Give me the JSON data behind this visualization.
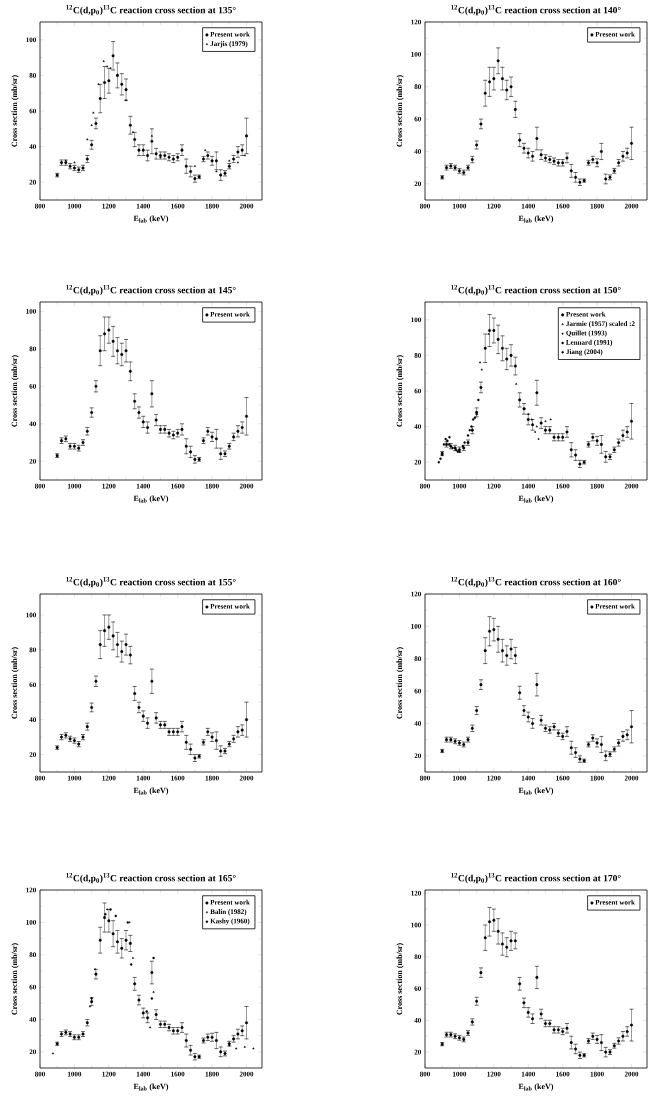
{
  "chart_data": [
    {
      "type": "scatter",
      "title": "$^{12}$C(d,p$_{0}$)$^{13}$C reaction cross section at 135°",
      "xlabel": "E$_{lab}$ (keV)",
      "ylabel": "Cross section (mb/sr)",
      "xlim": [
        800,
        2090
      ],
      "ylim": [
        10,
        110
      ],
      "xticks": [
        800,
        1000,
        1200,
        1400,
        1600,
        1800,
        2000
      ],
      "yticks": [
        20,
        40,
        60,
        80,
        100
      ],
      "legend": "top right",
      "x": [
        900,
        925,
        950,
        975,
        1000,
        1025,
        1050,
        1075,
        1100,
        1125,
        1150,
        1175,
        1200,
        1225,
        1250,
        1275,
        1300,
        1325,
        1350,
        1375,
        1400,
        1425,
        1450,
        1475,
        1500,
        1525,
        1550,
        1575,
        1600,
        1625,
        1650,
        1675,
        1700,
        1725,
        1750,
        1775,
        1800,
        1825,
        1850,
        1875,
        1900,
        1925,
        1950,
        1975,
        2000
      ],
      "series": [
        {
          "name": "Present work",
          "color": "#000000",
          "marker": "circle",
          "values": [
            24,
            31,
            31,
            29,
            28,
            27,
            28,
            33,
            41,
            53,
            67,
            76,
            77,
            91,
            80,
            75,
            72,
            52,
            44,
            38,
            38,
            35,
            43,
            36,
            35,
            35,
            34,
            33,
            34,
            38,
            29,
            26,
            22,
            23,
            33,
            35,
            32,
            32,
            24,
            25,
            29,
            33,
            37,
            38,
            46
          ],
          "errors": [
            1,
            1.5,
            1.5,
            1.5,
            1.5,
            1.5,
            1.5,
            2,
            2.5,
            3,
            8,
            9,
            7,
            8,
            7,
            6,
            6,
            5,
            4,
            3,
            3,
            3,
            7,
            3,
            2,
            2,
            2,
            2,
            2,
            3,
            4,
            3,
            2,
            1,
            1.5,
            2,
            2.5,
            5,
            3,
            1.5,
            1.5,
            2,
            3,
            3,
            10
          ]
        },
        {
          "name": "Jarjis (1979)",
          "color": "#000000",
          "marker": "triangle",
          "x": [
            950,
            1000,
            1075,
            1100,
            1110,
            1140,
            1170,
            1190,
            1210,
            1300,
            1340,
            1450,
            1500,
            1700,
            1760,
            1825,
            1900,
            1950,
            1990
          ],
          "values": [
            32,
            31,
            44,
            52,
            59,
            75,
            88,
            85,
            84,
            66,
            48,
            46,
            34,
            29,
            38,
            26,
            32,
            31,
            35
          ]
        }
      ]
    },
    {
      "type": "scatter",
      "title": "$^{12}$C(d,p$_{0}$)$^{13}$C reaction cross section at 140°",
      "xlabel": "E$_{lab}$ (keV)",
      "ylabel": "Cross section (mb/sr)",
      "xlim": [
        800,
        2090
      ],
      "ylim": [
        10,
        120
      ],
      "xticks": [
        800,
        1000,
        1200,
        1400,
        1600,
        1800,
        2000
      ],
      "yticks": [
        20,
        40,
        60,
        80,
        100,
        120
      ],
      "legend": "top right",
      "x": [
        900,
        925,
        950,
        975,
        1000,
        1025,
        1050,
        1075,
        1100,
        1125,
        1150,
        1175,
        1200,
        1225,
        1250,
        1275,
        1300,
        1325,
        1350,
        1375,
        1400,
        1425,
        1450,
        1475,
        1500,
        1525,
        1550,
        1575,
        1600,
        1625,
        1650,
        1675,
        1700,
        1725,
        1750,
        1775,
        1800,
        1825,
        1850,
        1875,
        1900,
        1925,
        1950,
        1975,
        2000
      ],
      "series": [
        {
          "name": "Present work",
          "color": "#000000",
          "marker": "circle",
          "values": [
            24,
            30,
            31,
            30,
            28,
            27,
            30,
            35,
            44,
            57,
            76,
            83,
            85,
            96,
            85,
            78,
            80,
            66,
            47,
            42,
            39,
            37,
            48,
            38,
            36,
            35,
            34,
            33,
            33,
            36,
            28,
            24,
            21,
            22,
            33,
            35,
            33,
            40,
            23,
            24,
            28,
            33,
            37,
            39,
            45
          ],
          "errors": [
            1,
            1.5,
            1.5,
            1.5,
            1.5,
            1.5,
            1.5,
            2,
            2.5,
            3,
            8,
            9,
            7,
            8,
            7,
            6,
            6,
            5,
            4,
            3,
            3,
            3,
            7,
            3,
            2,
            2,
            2,
            2,
            2,
            3,
            4,
            3,
            2,
            1,
            1.5,
            2,
            2.5,
            5,
            3,
            1.5,
            1.5,
            2,
            3,
            3,
            10
          ]
        }
      ]
    },
    {
      "type": "scatter",
      "title": "$^{12}$C(d,p$_{0}$)$^{13}$C reaction cross section at 145°",
      "xlabel": "E$_{lab}$ (keV)",
      "ylabel": "Cross section (mb/sr)",
      "xlim": [
        800,
        2090
      ],
      "ylim": [
        10,
        105
      ],
      "xticks": [
        800,
        1000,
        1200,
        1400,
        1600,
        1800,
        2000
      ],
      "yticks": [
        20,
        40,
        60,
        80,
        100
      ],
      "legend": "top right",
      "x": [
        900,
        925,
        950,
        975,
        1000,
        1025,
        1050,
        1075,
        1100,
        1125,
        1150,
        1175,
        1200,
        1225,
        1250,
        1275,
        1300,
        1325,
        1350,
        1375,
        1400,
        1425,
        1450,
        1475,
        1500,
        1525,
        1550,
        1575,
        1600,
        1625,
        1650,
        1675,
        1700,
        1725,
        1750,
        1775,
        1800,
        1825,
        1850,
        1875,
        1900,
        1925,
        1950,
        1975,
        2000
      ],
      "series": [
        {
          "name": "Present work",
          "color": "#000000",
          "marker": "circle",
          "values": [
            23,
            31,
            32,
            28,
            28,
            27,
            30,
            36,
            46,
            60,
            79,
            88,
            90,
            84,
            79,
            77,
            79,
            68,
            52,
            46,
            41,
            38,
            56,
            42,
            37,
            37,
            35,
            34,
            35,
            37,
            28,
            25,
            21,
            21,
            31,
            36,
            33,
            32,
            24,
            24,
            28,
            33,
            36,
            38,
            44
          ],
          "errors": [
            1,
            1.5,
            1.5,
            1.5,
            1.5,
            1.5,
            1.5,
            2,
            2.5,
            3,
            8,
            9,
            7,
            8,
            7,
            6,
            6,
            5,
            4,
            3,
            3,
            3,
            7,
            3,
            2,
            2,
            2,
            2,
            2,
            3,
            4,
            3,
            2,
            1,
            1.5,
            2,
            2.5,
            5,
            3,
            1.5,
            1.5,
            2,
            3,
            3,
            10
          ]
        }
      ]
    },
    {
      "type": "scatter",
      "title": "$^{12}$C(d,p$_{0}$)$^{13}$C reaction cross section at 150°",
      "xlabel": "E$_{lab}$ (keV)",
      "ylabel": "Cross section (mb/sr)",
      "xlim": [
        800,
        2090
      ],
      "ylim": [
        10,
        110
      ],
      "xticks": [
        800,
        1000,
        1200,
        1400,
        1600,
        1800,
        2000
      ],
      "yticks": [
        20,
        40,
        60,
        80,
        100
      ],
      "legend": "top right",
      "x": [
        900,
        925,
        950,
        975,
        1000,
        1025,
        1050,
        1075,
        1100,
        1125,
        1150,
        1175,
        1200,
        1225,
        1250,
        1275,
        1300,
        1325,
        1350,
        1375,
        1400,
        1425,
        1450,
        1475,
        1500,
        1525,
        1550,
        1575,
        1600,
        1625,
        1650,
        1675,
        1700,
        1725,
        1750,
        1775,
        1800,
        1825,
        1850,
        1875,
        1900,
        1925,
        1950,
        1975,
        2000
      ],
      "series": [
        {
          "name": "Present work",
          "color": "#000000",
          "marker": "circle",
          "values": [
            25,
            30,
            29,
            28,
            27,
            28,
            31,
            38,
            48,
            62,
            84,
            94,
            94,
            89,
            84,
            78,
            80,
            74,
            55,
            50,
            44,
            41,
            59,
            42,
            38,
            38,
            34,
            34,
            34,
            37,
            27,
            24,
            19,
            20,
            30,
            34,
            32,
            30,
            23,
            23,
            27,
            31,
            35,
            37,
            43
          ],
          "errors": [
            1,
            1.5,
            1.5,
            1.5,
            1.5,
            1.5,
            1.5,
            2,
            2.5,
            3,
            8,
            9,
            7,
            8,
            7,
            6,
            6,
            5,
            4,
            3,
            3,
            3,
            7,
            3,
            2,
            2,
            2,
            2,
            2,
            3,
            4,
            3,
            2,
            1,
            1.5,
            2,
            2.5,
            5,
            3,
            1.5,
            1.5,
            2,
            3,
            3,
            10
          ]
        },
        {
          "name": "Jarmie (1957) scaled :2",
          "color": "#000000",
          "marker": "triangle",
          "x": [
            1120,
            1130,
            1170,
            1330,
            1450,
            1500,
            1530
          ],
          "values": [
            76,
            72,
            92,
            64,
            40,
            43,
            44
          ]
        },
        {
          "name": "Quillet (1993)",
          "color": "#000000",
          "marker": "diamond",
          "x": [
            1380,
            1400,
            1420,
            1440,
            1460
          ],
          "values": [
            50,
            47,
            44,
            37,
            33
          ]
        },
        {
          "name": "Lennard (1991)",
          "color": "#000000",
          "marker": "circle",
          "x": [
            880,
            900,
            920,
            940,
            960,
            990,
            1020,
            1050,
            1070,
            1090,
            1110
          ],
          "values": [
            20,
            24,
            33,
            30,
            28,
            26,
            29,
            35,
            40,
            45,
            55
          ]
        },
        {
          "name": "Jiang (2004)",
          "color": "#000000",
          "marker": "circle",
          "x": [
            890,
            910,
            930,
            942,
            980,
            1000,
            1030,
            1060,
            1080,
            1100
          ],
          "values": [
            22,
            30,
            32,
            34,
            27,
            26,
            31,
            38,
            44,
            47
          ]
        }
      ]
    },
    {
      "type": "scatter",
      "title": "$^{12}$C(d,p$_{0}$)$^{13}$C reaction cross section at 155°",
      "xlabel": "E$_{lab}$ (keV)",
      "ylabel": "Cross section (mb/sr)",
      "xlim": [
        800,
        2090
      ],
      "ylim": [
        10,
        112
      ],
      "xticks": [
        800,
        1000,
        1200,
        1400,
        1600,
        1800,
        2000
      ],
      "yticks": [
        20,
        40,
        60,
        80,
        100
      ],
      "legend": "top right",
      "x": [
        900,
        925,
        950,
        975,
        1000,
        1025,
        1050,
        1075,
        1100,
        1125,
        1150,
        1175,
        1200,
        1225,
        1250,
        1275,
        1300,
        1325,
        1350,
        1375,
        1400,
        1425,
        1450,
        1475,
        1500,
        1525,
        1550,
        1575,
        1600,
        1625,
        1650,
        1675,
        1700,
        1725,
        1750,
        1775,
        1800,
        1825,
        1850,
        1875,
        1900,
        1925,
        1950,
        1975,
        2000
      ],
      "series": [
        {
          "name": "Present work",
          "color": "#000000",
          "marker": "circle",
          "values": [
            24,
            30,
            31,
            29,
            28,
            26,
            30,
            36,
            47,
            62,
            83,
            91,
            93,
            88,
            83,
            79,
            83,
            77,
            55,
            47,
            42,
            38,
            62,
            41,
            37,
            37,
            33,
            33,
            33,
            36,
            27,
            23,
            18,
            19,
            27,
            33,
            30,
            28,
            22,
            22,
            26,
            29,
            33,
            34,
            40
          ],
          "errors": [
            1,
            1.5,
            1.5,
            1.5,
            1.5,
            1.5,
            1.5,
            2,
            2.5,
            3,
            8,
            9,
            7,
            8,
            7,
            6,
            6,
            5,
            4,
            3,
            3,
            3,
            7,
            3,
            2,
            2,
            2,
            2,
            2,
            3,
            4,
            3,
            2,
            1,
            1.5,
            2,
            2.5,
            5,
            3,
            1.5,
            1.5,
            2,
            3,
            3,
            10
          ]
        }
      ]
    },
    {
      "type": "scatter",
      "title": "$^{12}$C(d,p$_{0}$)$^{13}$C reaction cross section at 160°",
      "xlabel": "E$_{lab}$ (keV)",
      "ylabel": "Cross section (mb/sr)",
      "xlim": [
        800,
        2090
      ],
      "ylim": [
        10,
        120
      ],
      "xticks": [
        800,
        1000,
        1200,
        1400,
        1600,
        1800,
        2000
      ],
      "yticks": [
        20,
        40,
        60,
        80,
        100,
        120
      ],
      "legend": "top right",
      "x": [
        900,
        925,
        950,
        975,
        1000,
        1025,
        1050,
        1075,
        1100,
        1125,
        1150,
        1175,
        1200,
        1225,
        1250,
        1275,
        1300,
        1325,
        1350,
        1375,
        1400,
        1425,
        1450,
        1475,
        1500,
        1525,
        1550,
        1575,
        1600,
        1625,
        1650,
        1675,
        1700,
        1725,
        1750,
        1775,
        1800,
        1825,
        1850,
        1875,
        1900,
        1925,
        1950,
        1975,
        2000
      ],
      "series": [
        {
          "name": "Present work",
          "color": "#000000",
          "marker": "circle",
          "values": [
            23,
            30,
            30,
            29,
            28,
            27,
            30,
            37,
            48,
            64,
            85,
            97,
            98,
            92,
            85,
            82,
            86,
            82,
            59,
            48,
            44,
            40,
            64,
            42,
            37,
            36,
            38,
            34,
            32,
            35,
            25,
            22,
            18,
            17,
            27,
            31,
            28,
            27,
            20,
            21,
            24,
            28,
            32,
            33,
            38
          ],
          "errors": [
            1,
            1.5,
            1.5,
            1.5,
            1.5,
            1.5,
            1.5,
            2,
            2.5,
            3,
            8,
            9,
            7,
            8,
            7,
            6,
            6,
            5,
            4,
            3,
            3,
            3,
            7,
            3,
            2,
            2,
            2,
            2,
            2,
            3,
            4,
            3,
            2,
            1,
            1.5,
            2,
            2.5,
            5,
            3,
            1.5,
            1.5,
            2,
            3,
            3,
            10
          ]
        }
      ]
    },
    {
      "type": "scatter",
      "title": "$^{12}$C(d,p$_{0}$)$^{13}$C reaction cross section at 165°",
      "xlabel": "E$_{lab}$ (keV)",
      "ylabel": "Cross section (mb/sr)",
      "xlim": [
        800,
        2090
      ],
      "ylim": [
        10,
        120
      ],
      "xticks": [
        800,
        1000,
        1200,
        1400,
        1600,
        1800,
        2000
      ],
      "yticks": [
        20,
        40,
        60,
        80,
        100,
        120
      ],
      "legend": "top right",
      "x": [
        900,
        925,
        950,
        975,
        1000,
        1025,
        1050,
        1075,
        1100,
        1125,
        1150,
        1175,
        1200,
        1225,
        1250,
        1275,
        1300,
        1325,
        1350,
        1375,
        1400,
        1425,
        1450,
        1475,
        1500,
        1525,
        1550,
        1575,
        1600,
        1625,
        1650,
        1675,
        1700,
        1725,
        1750,
        1775,
        1800,
        1825,
        1850,
        1875,
        1900,
        1925,
        1950,
        1975,
        2000
      ],
      "series": [
        {
          "name": "Present work",
          "color": "#000000",
          "marker": "circle",
          "values": [
            25,
            31,
            32,
            31,
            29,
            29,
            31,
            38,
            51,
            68,
            89,
            103,
            101,
            93,
            88,
            84,
            89,
            87,
            62,
            52,
            44,
            41,
            69,
            43,
            37,
            37,
            35,
            33,
            33,
            35,
            27,
            21,
            17,
            17,
            27,
            29,
            29,
            27,
            20,
            19,
            25,
            28,
            31,
            33,
            38
          ],
          "errors": [
            1,
            1.5,
            1.5,
            1.5,
            1.5,
            1.5,
            1.5,
            2,
            2.5,
            3,
            8,
            9,
            7,
            8,
            7,
            6,
            6,
            5,
            4,
            3,
            3,
            3,
            7,
            3,
            2,
            2,
            2,
            2,
            2,
            3,
            4,
            3,
            2,
            1,
            1.5,
            2,
            2.5,
            5,
            3,
            1.5,
            1.5,
            2,
            3,
            3,
            10
          ]
        },
        {
          "name": "Balin (1982)",
          "color": "#000000",
          "marker": "triangle",
          "x": [
            875,
            1090,
            1120,
            1190,
            1300,
            1320,
            1340,
            1440,
            1460,
            1900,
            1940,
            1990,
            2040
          ],
          "values": [
            19,
            48,
            71,
            108,
            89,
            100,
            78,
            35,
            57,
            24,
            22,
            23,
            22
          ]
        },
        {
          "name": "Kashy (1960)",
          "color": "#000000",
          "marker": "circle",
          "x": [
            1100,
            1180,
            1210,
            1240,
            1310,
            1330,
            1420,
            1450,
            1460
          ],
          "values": [
            53,
            105,
            108,
            104,
            100,
            74,
            45,
            53,
            78
          ]
        }
      ]
    },
    {
      "type": "scatter",
      "title": "$^{12}$C(d,p$_{0}$)$^{13}$C reaction cross section at 170°",
      "xlabel": "E$_{lab}$ (keV)",
      "ylabel": "Cross section (mb/sr)",
      "xlim": [
        800,
        2090
      ],
      "ylim": [
        10,
        122
      ],
      "xticks": [
        800,
        1000,
        1200,
        1400,
        1600,
        1800,
        2000
      ],
      "yticks": [
        20,
        40,
        60,
        80,
        100,
        120
      ],
      "legend": "top right",
      "x": [
        900,
        925,
        950,
        975,
        1000,
        1025,
        1050,
        1075,
        1100,
        1125,
        1150,
        1175,
        1200,
        1225,
        1250,
        1275,
        1300,
        1325,
        1350,
        1375,
        1400,
        1425,
        1450,
        1475,
        1500,
        1525,
        1550,
        1575,
        1600,
        1625,
        1650,
        1675,
        1700,
        1725,
        1750,
        1775,
        1800,
        1825,
        1850,
        1875,
        1900,
        1925,
        1950,
        1975,
        2000
      ],
      "series": [
        {
          "name": "Present work",
          "color": "#000000",
          "marker": "circle",
          "values": [
            25,
            31,
            31,
            30,
            29,
            28,
            32,
            39,
            52,
            70,
            92,
            102,
            103,
            96,
            88,
            86,
            90,
            90,
            63,
            51,
            45,
            41,
            67,
            44,
            38,
            38,
            34,
            34,
            33,
            35,
            26,
            22,
            18,
            18,
            27,
            30,
            28,
            26,
            20,
            20,
            24,
            27,
            30,
            33,
            37
          ],
          "errors": [
            1,
            1.5,
            1.5,
            1.5,
            1.5,
            1.5,
            1.5,
            2,
            2.5,
            3,
            8,
            9,
            7,
            8,
            7,
            6,
            6,
            5,
            4,
            3,
            3,
            3,
            7,
            3,
            2,
            2,
            2,
            2,
            2,
            3,
            4,
            3,
            2,
            1,
            1.5,
            2,
            2.5,
            5,
            3,
            1.5,
            1.5,
            2,
            3,
            3,
            10
          ]
        }
      ]
    }
  ]
}
